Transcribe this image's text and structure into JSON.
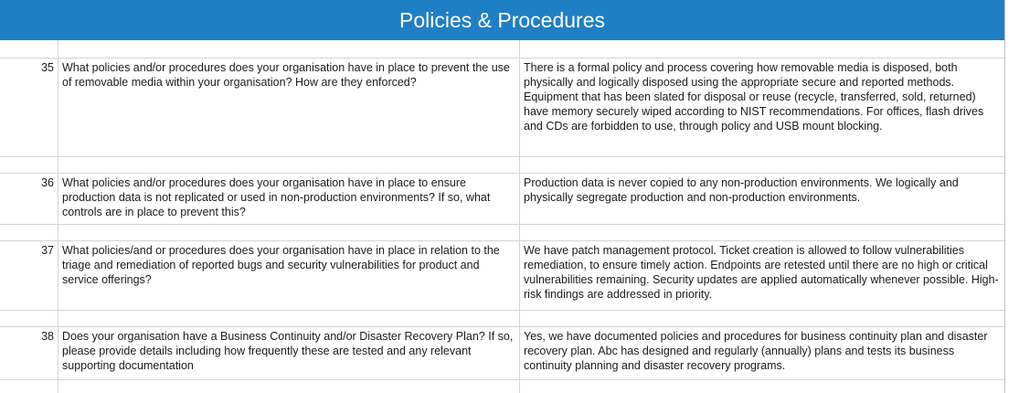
{
  "header": {
    "title": "Policies & Procedures"
  },
  "rows": [
    {
      "number": "35",
      "question": "What policies and/or procedures does your organisation have in place to prevent the use of removable media within your organisation? How are they enforced?",
      "answer": "There is a formal policy and process covering how removable media is disposed, both physically and logically disposed using the appropriate secure and reported methods. Equipment that has been slated for disposal or reuse (recycle, transferred, sold, returned) have memory securely wiped according to NIST recommendations. For offices, flash drives and CDs are forbidden to use, through policy and USB mount blocking."
    },
    {
      "number": "36",
      "question": "What policies and/or procedures does your organisation have in place to ensure production data is not replicated or used in non-production environments? If so, what controls are in place to prevent this?",
      "answer": "Production data is never copied to any non-production environments. We logically and physically segregate production and non-production environments."
    },
    {
      "number": "37",
      "question": "What policies/and or procedures does your organisation have in place in relation to the triage and remediation of reported bugs and security vulnerabilities for product and service offerings?",
      "answer": "We have patch management protocol. Ticket creation is allowed to follow vulnerabilities remediation, to ensure timely action. Endpoints are retested until there are no high or critical vulnerabilities remaining. Security updates are applied automatically whenever possible. High-risk findings are addressed in priority."
    },
    {
      "number": "38",
      "question": "Does your organisation have a Business Continuity and/or Disaster Recovery Plan? If so, please provide details including how frequently these are tested and any relevant supporting documentation",
      "answer": "Yes, we have documented policies and procedures for business continuity plan and disaster recovery plan. Abc has designed and regularly (annually) plans and tests its business continuity planning and disaster recovery programs."
    }
  ]
}
